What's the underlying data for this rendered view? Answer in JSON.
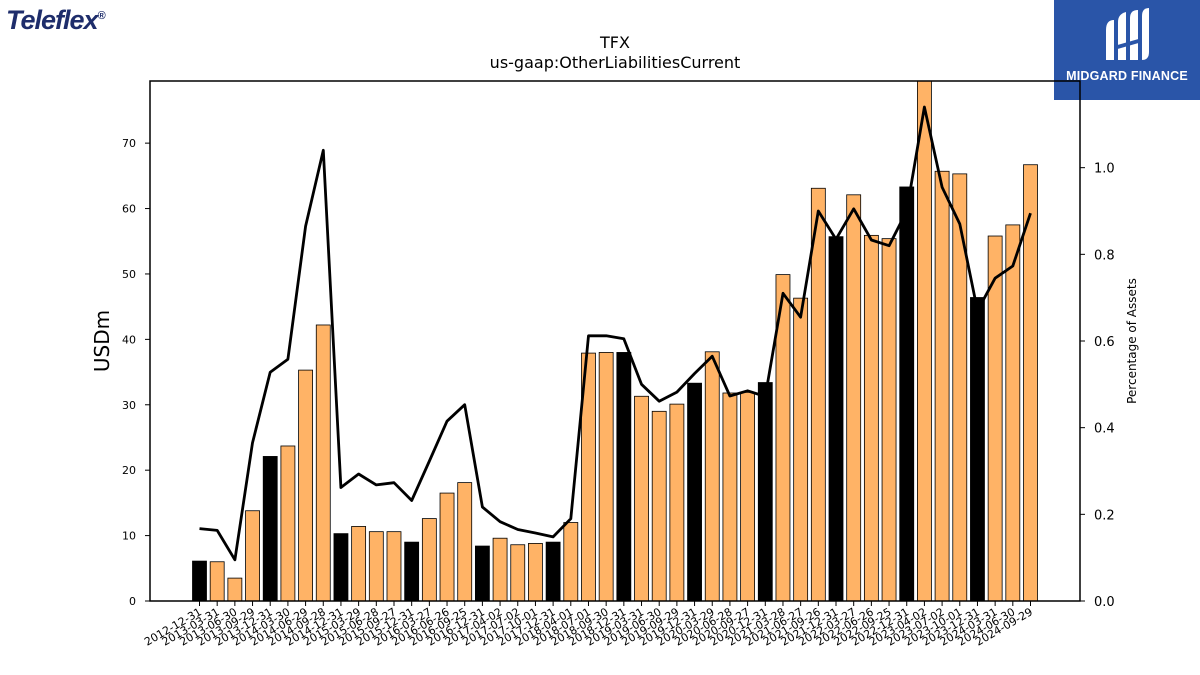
{
  "logos": {
    "left_company": "Teleflex",
    "left_mark": "®",
    "right_brand": "MIDGARD FINANCE"
  },
  "chart_data": {
    "type": "bar",
    "title": "TFX",
    "subtitle": "us-gaap:OtherLiabilitiesCurrent",
    "ylabel": "USDm",
    "y2label": "Percentage of Assets",
    "ylim": [
      0,
      79.5
    ],
    "y2lim": [
      0,
      1.2
    ],
    "yticks": [
      0,
      10,
      20,
      30,
      40,
      50,
      60,
      70
    ],
    "y2ticks": [
      "0.0",
      "0.2",
      "0.4",
      "0.6",
      "0.8",
      "1.0"
    ],
    "colors": {
      "annual": "#000000",
      "quarter": "#ffb366",
      "line": "#000000"
    },
    "categories": [
      "2012-12-31",
      "2013-03-31",
      "2013-06-30",
      "2013-09-29",
      "2013-12-31",
      "2014-03-30",
      "2014-06-29",
      "2014-09-28",
      "2014-12-31",
      "2015-03-29",
      "2015-06-28",
      "2015-09-27",
      "2015-12-31",
      "2016-03-27",
      "2016-06-26",
      "2016-09-25",
      "2016-12-31",
      "2017-04-02",
      "2017-07-02",
      "2017-10-01",
      "2017-12-31",
      "2018-04-01",
      "2018-07-01",
      "2018-09-30",
      "2018-12-31",
      "2019-03-31",
      "2019-06-30",
      "2019-09-29",
      "2019-12-31",
      "2020-03-29",
      "2020-06-28",
      "2020-09-27",
      "2020-12-31",
      "2021-03-28",
      "2021-06-27",
      "2021-09-26",
      "2021-12-31",
      "2022-03-27",
      "2022-06-26",
      "2022-09-25",
      "2022-12-31",
      "2023-04-02",
      "2023-07-02",
      "2023-10-01",
      "2023-12-31",
      "2024-03-31",
      "2024-06-30",
      "2024-09-29"
    ],
    "series": [
      {
        "kind": "bar",
        "values": [
          6.1,
          6.0,
          3.5,
          13.8,
          22.1,
          23.7,
          35.3,
          42.2,
          10.3,
          11.4,
          10.6,
          10.6,
          9.0,
          12.6,
          16.5,
          18.1,
          8.4,
          9.6,
          8.6,
          8.8,
          9.0,
          12.0,
          37.9,
          38.0,
          38.0,
          31.3,
          29.0,
          30.1,
          33.3,
          38.1,
          31.8,
          31.9,
          33.4,
          49.9,
          46.3,
          63.1,
          55.7,
          62.1,
          55.9,
          55.4,
          63.3,
          79.5,
          65.7,
          65.3,
          46.4,
          55.8,
          57.5,
          66.7
        ],
        "annual_flags": [
          1,
          0,
          0,
          0,
          1,
          0,
          0,
          0,
          1,
          0,
          0,
          0,
          1,
          0,
          0,
          0,
          1,
          0,
          0,
          0,
          1,
          0,
          0,
          0,
          1,
          0,
          0,
          0,
          1,
          0,
          0,
          0,
          1,
          0,
          0,
          0,
          1,
          0,
          0,
          0,
          1,
          0,
          0,
          0,
          1,
          0,
          0,
          0
        ]
      },
      {
        "kind": "line",
        "axis": "right",
        "values": [
          0.167,
          0.163,
          0.095,
          0.365,
          0.528,
          0.558,
          0.865,
          1.04,
          0.262,
          0.293,
          0.268,
          0.273,
          0.232,
          0.323,
          0.415,
          0.453,
          0.217,
          0.183,
          0.165,
          0.157,
          0.148,
          0.19,
          0.612,
          0.612,
          0.605,
          0.5,
          0.461,
          0.482,
          0.525,
          0.565,
          0.473,
          0.485,
          0.472,
          0.71,
          0.655,
          0.9,
          0.835,
          0.905,
          0.833,
          0.82,
          0.9,
          1.14,
          0.955,
          0.87,
          0.67,
          0.745,
          0.773,
          0.895
        ]
      }
    ]
  }
}
